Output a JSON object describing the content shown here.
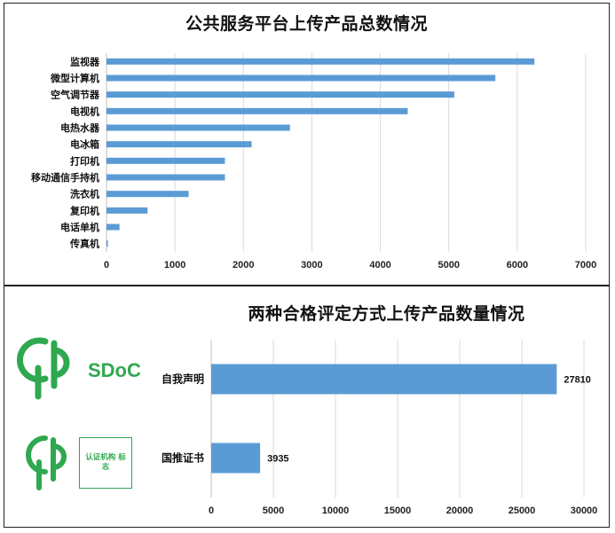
{
  "chart_data": [
    {
      "type": "bar",
      "orientation": "horizontal",
      "title": "公共服务平台上传产品总数情况",
      "categories": [
        "监视器",
        "微型计算机",
        "空气调节器",
        "电视机",
        "电热水器",
        "电冰箱",
        "打印机",
        "移动通信手持机",
        "洗衣机",
        "复印机",
        "电话单机",
        "传真机"
      ],
      "values": [
        6250,
        5680,
        5080,
        4400,
        2680,
        2120,
        1730,
        1730,
        1200,
        600,
        190,
        20
      ],
      "xlim": [
        0,
        7000
      ],
      "xticks": [
        0,
        1000,
        2000,
        3000,
        4000,
        5000,
        6000,
        7000
      ],
      "grid": true,
      "bar_color": "#5b9bd5"
    },
    {
      "type": "bar",
      "orientation": "horizontal",
      "title": "两种合格评定方式上传产品数量情况",
      "categories": [
        "自我声明",
        "国推证书"
      ],
      "values": [
        27810,
        3935
      ],
      "data_labels": [
        "27810",
        "3935"
      ],
      "xlim": [
        0,
        30000
      ],
      "xticks": [
        0,
        5000,
        10000,
        15000,
        20000,
        25000,
        30000
      ],
      "grid": true,
      "bar_color": "#5b9bd5"
    }
  ],
  "logos": {
    "sdoc_text": "SDoC",
    "cert_mark_text": "认证机构 标志",
    "green": "#2fa84f"
  }
}
